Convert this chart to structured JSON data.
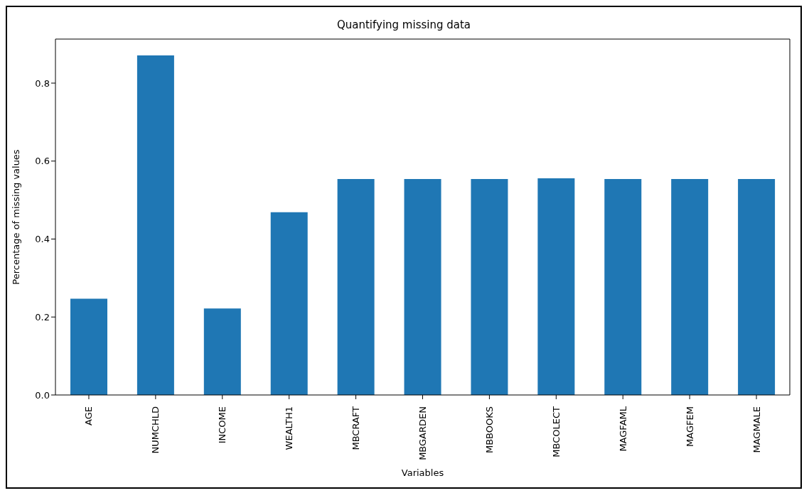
{
  "chart_data": {
    "type": "bar",
    "title": "Quantifying missing data",
    "xlabel": "Variables",
    "ylabel": "Percentage of missing values",
    "categories": [
      "AGE",
      "NUMCHLD",
      "INCOME",
      "WEALTH1",
      "MBCRAFT",
      "MBGARDEN",
      "MBBOOKS",
      "MBCOLECT",
      "MAGFAML",
      "MAGFEM",
      "MAGMALE"
    ],
    "values": [
      0.247,
      0.871,
      0.222,
      0.469,
      0.554,
      0.554,
      0.554,
      0.556,
      0.554,
      0.554,
      0.554
    ],
    "color": "#1f77b4",
    "ylim": [
      0,
      0.913
    ],
    "yticks": [
      {
        "value": 0,
        "label": "0.0"
      },
      {
        "value": 0.2,
        "label": "0.2"
      },
      {
        "value": 0.4,
        "label": "0.4"
      },
      {
        "value": 0.6,
        "label": "0.6"
      },
      {
        "value": 0.8,
        "label": "0.8"
      }
    ],
    "grid": false
  }
}
